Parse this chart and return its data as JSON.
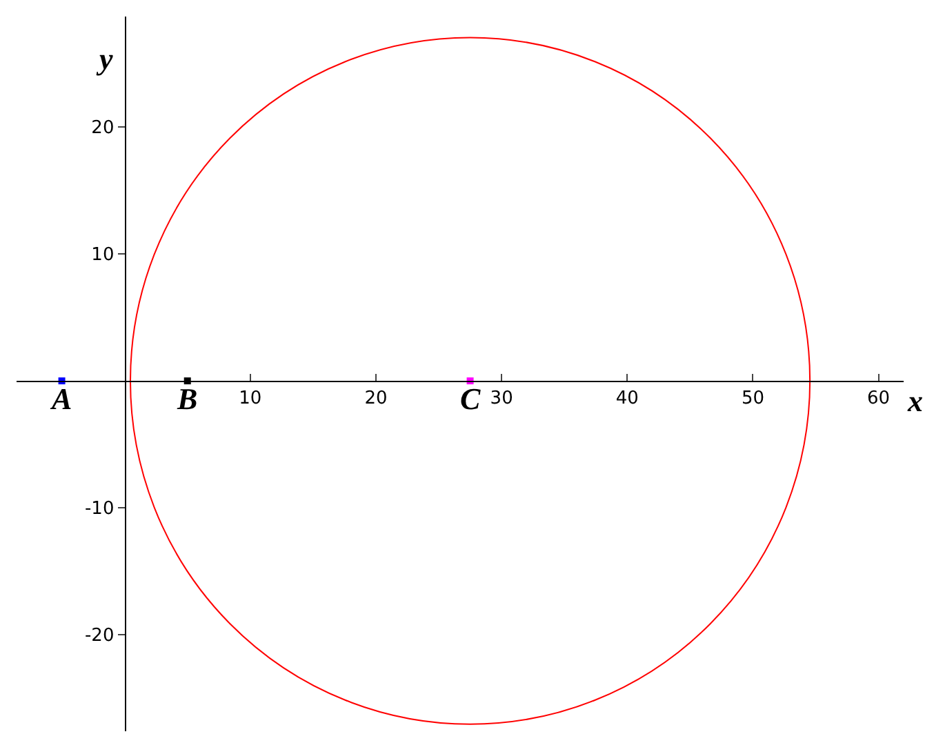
{
  "chart_data": {
    "type": "scatter",
    "xlabel": "x",
    "ylabel": "y",
    "xlim": [
      -8.6,
      62
    ],
    "ylim": [
      -27.6,
      28.7
    ],
    "xticks": [
      10,
      20,
      30,
      40,
      50,
      60
    ],
    "yticks": [
      -20,
      -10,
      10,
      20
    ],
    "grid": false,
    "legend": false,
    "marker": "square",
    "series": [
      {
        "name": "A",
        "color": "#0000ff",
        "x": [
          -5
        ],
        "values": [
          0
        ]
      },
      {
        "name": "B",
        "color": "#000000",
        "x": [
          5
        ],
        "values": [
          0
        ]
      },
      {
        "name": "C",
        "color": "#ff00ff",
        "x": [
          27.5
        ],
        "values": [
          0
        ]
      }
    ]
  }
}
